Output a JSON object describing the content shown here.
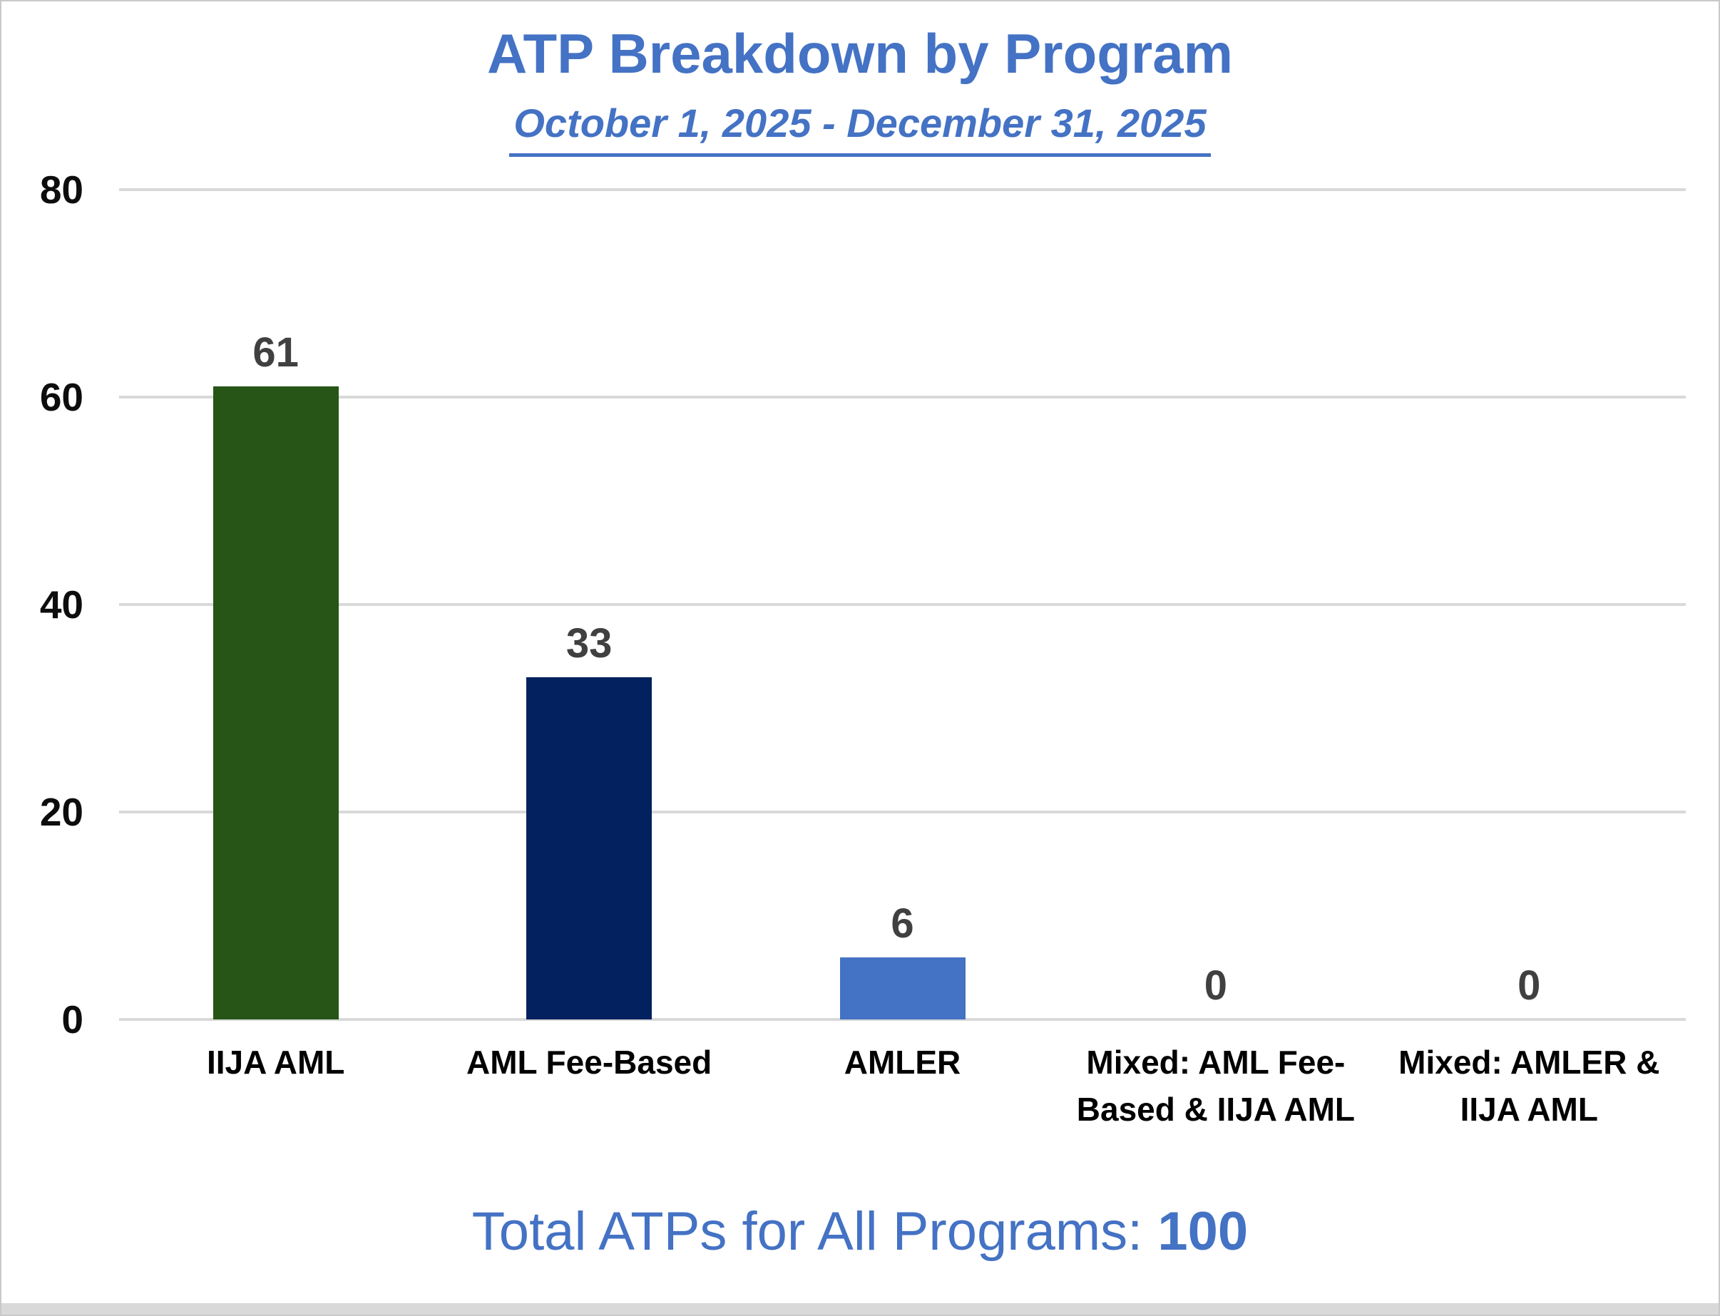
{
  "chart_data": {
    "type": "bar",
    "title": "ATP Breakdown by Program",
    "subtitle": "October 1, 2025 - December 31, 2025",
    "categories": [
      "IIJA AML",
      "AML Fee-Based",
      "AMLER",
      "Mixed: AML Fee-Based & IIJA AML",
      "Mixed: AMLER & IIJA AML"
    ],
    "values": [
      61,
      33,
      6,
      0,
      0
    ],
    "bar_colors": [
      "#265517",
      "#02215e",
      "#4472c4",
      "#4472c4",
      "#4472c4"
    ],
    "xlabel": "",
    "ylabel": "",
    "ylim": [
      0,
      80
    ],
    "yticks": [
      0,
      20,
      40,
      60,
      80
    ],
    "grid": true,
    "legend": "none",
    "data_label_color": "#404040",
    "total": 100
  },
  "footer": {
    "label": "Total ATPs for All Programs:",
    "value": "100"
  },
  "colors": {
    "accent_blue": "#4472c4",
    "bar_green": "#265517",
    "bar_navy": "#02215e",
    "bar_blue": "#4472c4",
    "gridline": "#d9d9d9",
    "data_label": "#404040",
    "border": "#c9c9c9",
    "scrollbar": "#d9d9d9"
  }
}
